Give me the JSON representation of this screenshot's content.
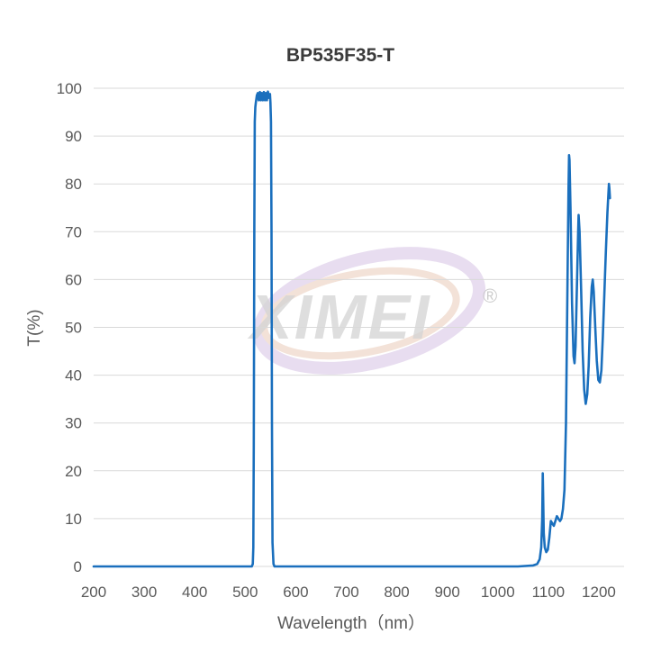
{
  "chart_data": {
    "type": "line",
    "title": "BP535F35-T",
    "xlabel": "Wavelength（nm）",
    "ylabel": "T(%)",
    "xlim": [
      200,
      1250
    ],
    "ylim": [
      0,
      100
    ],
    "xticks": [
      200,
      300,
      400,
      500,
      600,
      700,
      800,
      900,
      1000,
      1100,
      1200
    ],
    "yticks": [
      0,
      10,
      20,
      30,
      40,
      50,
      60,
      70,
      80,
      90,
      100
    ],
    "grid": "horizontal",
    "legend": "none",
    "watermark": "XIMEI®",
    "series": [
      {
        "color": "#1a6fbd",
        "points": [
          [
            200,
            0
          ],
          [
            513,
            0
          ],
          [
            515,
            0.5
          ],
          [
            516,
            4
          ],
          [
            517,
            25
          ],
          [
            518,
            70
          ],
          [
            519,
            93
          ],
          [
            520,
            96
          ],
          [
            521,
            97
          ],
          [
            523,
            98.5
          ],
          [
            525,
            99
          ],
          [
            527,
            97.5
          ],
          [
            529,
            99.2
          ],
          [
            531,
            97.5
          ],
          [
            533,
            99
          ],
          [
            535,
            97.5
          ],
          [
            537,
            99.2
          ],
          [
            539,
            97.5
          ],
          [
            541,
            99
          ],
          [
            543,
            97.5
          ],
          [
            545,
            99.3
          ],
          [
            547,
            98
          ],
          [
            549,
            98.8
          ],
          [
            550,
            97
          ],
          [
            551,
            93
          ],
          [
            552,
            70
          ],
          [
            553,
            30
          ],
          [
            554,
            5
          ],
          [
            556,
            0.5
          ],
          [
            558,
            0
          ],
          [
            1040,
            0
          ],
          [
            1070,
            0.2
          ],
          [
            1078,
            0.5
          ],
          [
            1083,
            1.5
          ],
          [
            1086,
            4
          ],
          [
            1088,
            10
          ],
          [
            1089,
            19.5
          ],
          [
            1090,
            14
          ],
          [
            1091,
            7
          ],
          [
            1093,
            4
          ],
          [
            1096,
            3
          ],
          [
            1099,
            3.5
          ],
          [
            1102,
            6
          ],
          [
            1105,
            9.5
          ],
          [
            1108,
            9
          ],
          [
            1111,
            8.5
          ],
          [
            1114,
            9.5
          ],
          [
            1117,
            10.5
          ],
          [
            1120,
            10
          ],
          [
            1123,
            9.5
          ],
          [
            1126,
            10
          ],
          [
            1129,
            12
          ],
          [
            1132,
            16
          ],
          [
            1135,
            30
          ],
          [
            1138,
            60
          ],
          [
            1140,
            79
          ],
          [
            1141,
            86
          ],
          [
            1142,
            85
          ],
          [
            1144,
            75
          ],
          [
            1147,
            55
          ],
          [
            1150,
            44
          ],
          [
            1152,
            42.5
          ],
          [
            1154,
            46
          ],
          [
            1157,
            60
          ],
          [
            1159,
            70
          ],
          [
            1160,
            73.5
          ],
          [
            1162,
            70
          ],
          [
            1165,
            58
          ],
          [
            1168,
            45
          ],
          [
            1171,
            37
          ],
          [
            1174,
            34
          ],
          [
            1177,
            36
          ],
          [
            1180,
            42
          ],
          [
            1183,
            52
          ],
          [
            1186,
            58.5
          ],
          [
            1188,
            60
          ],
          [
            1190,
            57.5
          ],
          [
            1193,
            50
          ],
          [
            1196,
            43
          ],
          [
            1199,
            39
          ],
          [
            1202,
            38.5
          ],
          [
            1205,
            41
          ],
          [
            1208,
            48
          ],
          [
            1211,
            57
          ],
          [
            1214,
            66
          ],
          [
            1217,
            74
          ],
          [
            1219,
            78
          ],
          [
            1220,
            80
          ],
          [
            1221,
            79
          ],
          [
            1222,
            77
          ]
        ]
      }
    ]
  }
}
